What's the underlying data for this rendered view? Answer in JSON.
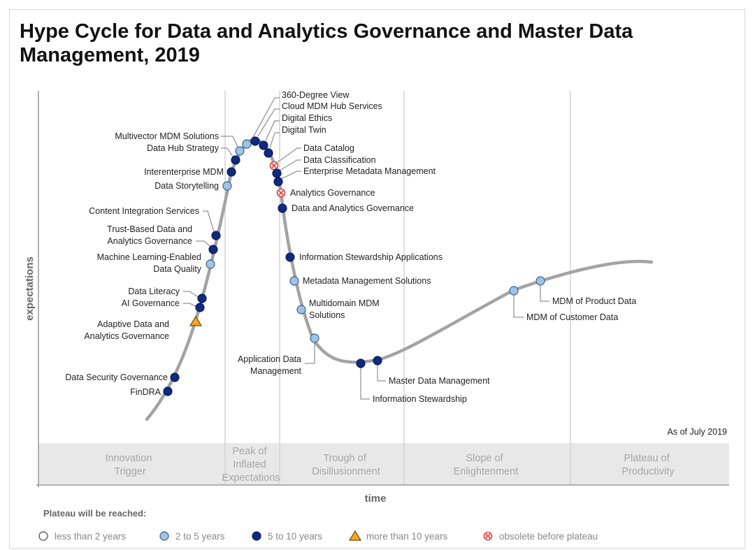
{
  "title": "Hype Cycle for Data and Analytics Governance and Master Data Management, 2019",
  "chart_data": {
    "type": "scatter",
    "title": "Hype Cycle for Data and Analytics Governance and Master Data Management, 2019",
    "xlabel": "time",
    "ylabel": "expectations",
    "as_of": "As of July 2019",
    "phases": [
      "Innovation Trigger",
      "Peak of Inflated Expectations",
      "Trough of Disillusionment",
      "Slope of Enlightenment",
      "Plateau of Productivity"
    ],
    "legend": {
      "title": "Plateau will be reached:",
      "items": [
        {
          "key": "lt2",
          "label": "less than 2 years",
          "color": "#ffffff"
        },
        {
          "key": "2to5",
          "label": "2 to 5 years",
          "color": "#9dc3e6"
        },
        {
          "key": "5to10",
          "label": "5 to 10 years",
          "color": "#0f2a80"
        },
        {
          "key": "gt10",
          "label": "more than 10 years",
          "color": "#f5a623"
        },
        {
          "key": "obsolete",
          "label": "obsolete before plateau",
          "color": "#e03c3c"
        }
      ]
    },
    "points": [
      {
        "name": "360-Degree View",
        "class": "2to5"
      },
      {
        "name": "Cloud MDM Hub Services",
        "class": "5to10"
      },
      {
        "name": "Digital Ethics",
        "class": "5to10"
      },
      {
        "name": "Digital Twin",
        "class": "5to10"
      },
      {
        "name": "Multivector MDM Solutions",
        "class": "2to5"
      },
      {
        "name": "Data Hub Strategy",
        "class": "5to10"
      },
      {
        "name": "Interenterprise MDM",
        "class": "5to10"
      },
      {
        "name": "Data Storytelling",
        "class": "2to5"
      },
      {
        "name": "Content Integration Services",
        "class": "5to10"
      },
      {
        "name": "Trust-Based Data and Analytics Governance",
        "class": "5to10"
      },
      {
        "name": "Machine Learning-Enabled Data Quality",
        "class": "2to5"
      },
      {
        "name": "Data Literacy",
        "class": "5to10"
      },
      {
        "name": "AI Governance",
        "class": "5to10"
      },
      {
        "name": "Adaptive Data and Analytics Governance",
        "class": "gt10"
      },
      {
        "name": "Data Security Governance",
        "class": "5to10"
      },
      {
        "name": "FinDRA",
        "class": "5to10"
      },
      {
        "name": "Data Catalog",
        "class": "obsolete"
      },
      {
        "name": "Data Classification",
        "class": "5to10"
      },
      {
        "name": "Enterprise Metadata Management",
        "class": "5to10"
      },
      {
        "name": "Analytics Governance",
        "class": "obsolete"
      },
      {
        "name": "Data and Analytics Governance",
        "class": "5to10"
      },
      {
        "name": "Information Stewardship Applications",
        "class": "5to10"
      },
      {
        "name": "Metadata Management Solutions",
        "class": "2to5"
      },
      {
        "name": "Multidomain MDM Solutions",
        "class": "2to5"
      },
      {
        "name": "Application Data Management",
        "class": "2to5"
      },
      {
        "name": "Information Stewardship",
        "class": "5to10"
      },
      {
        "name": "Master Data Management",
        "class": "5to10"
      },
      {
        "name": "MDM of Customer Data",
        "class": "2to5"
      },
      {
        "name": "MDM of Product Data",
        "class": "2to5"
      }
    ]
  }
}
